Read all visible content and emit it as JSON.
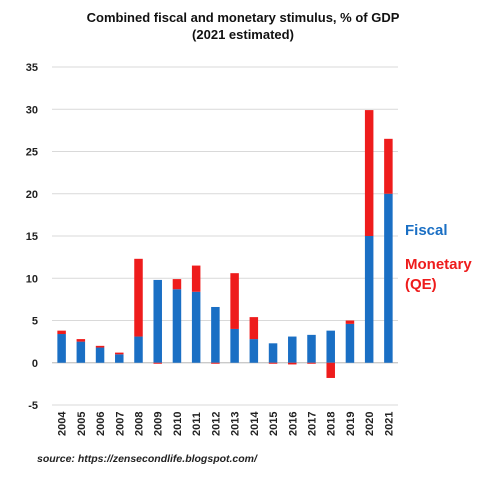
{
  "chart_data": {
    "type": "bar",
    "stacked": true,
    "title_line1": "Combined fiscal and monetary stimulus, % of GDP",
    "title_line2": "(2021 estimated)",
    "categories": [
      "2004",
      "2005",
      "2006",
      "2007",
      "2008",
      "2009",
      "2010",
      "2011",
      "2012",
      "2013",
      "2014",
      "2015",
      "2016",
      "2017",
      "2018",
      "2019",
      "2020",
      "2021"
    ],
    "series": [
      {
        "name": "Fiscal",
        "color": "#1a6fc4",
        "values": [
          3.4,
          2.5,
          1.8,
          1.0,
          3.1,
          9.8,
          8.7,
          8.4,
          6.6,
          4.0,
          2.8,
          2.3,
          3.1,
          3.3,
          3.8,
          4.6,
          15.0,
          20.0
        ]
      },
      {
        "name": "Monetary (QE)",
        "name_line1": "Monetary",
        "name_line2": "(QE)",
        "color": "#ee1c1c",
        "values": [
          0.4,
          0.3,
          0.2,
          0.2,
          9.2,
          -0.1,
          1.2,
          3.1,
          -0.1,
          6.6,
          2.6,
          -0.1,
          -0.2,
          -0.1,
          -1.8,
          0.4,
          14.9,
          6.5
        ]
      }
    ],
    "ylim": [
      -5,
      35
    ],
    "yticks": [
      -5,
      0,
      5,
      10,
      15,
      20,
      25,
      30,
      35
    ],
    "grid": true,
    "legend_position": "right"
  },
  "source": "source: https://zensecondlife.blogspot.com/"
}
